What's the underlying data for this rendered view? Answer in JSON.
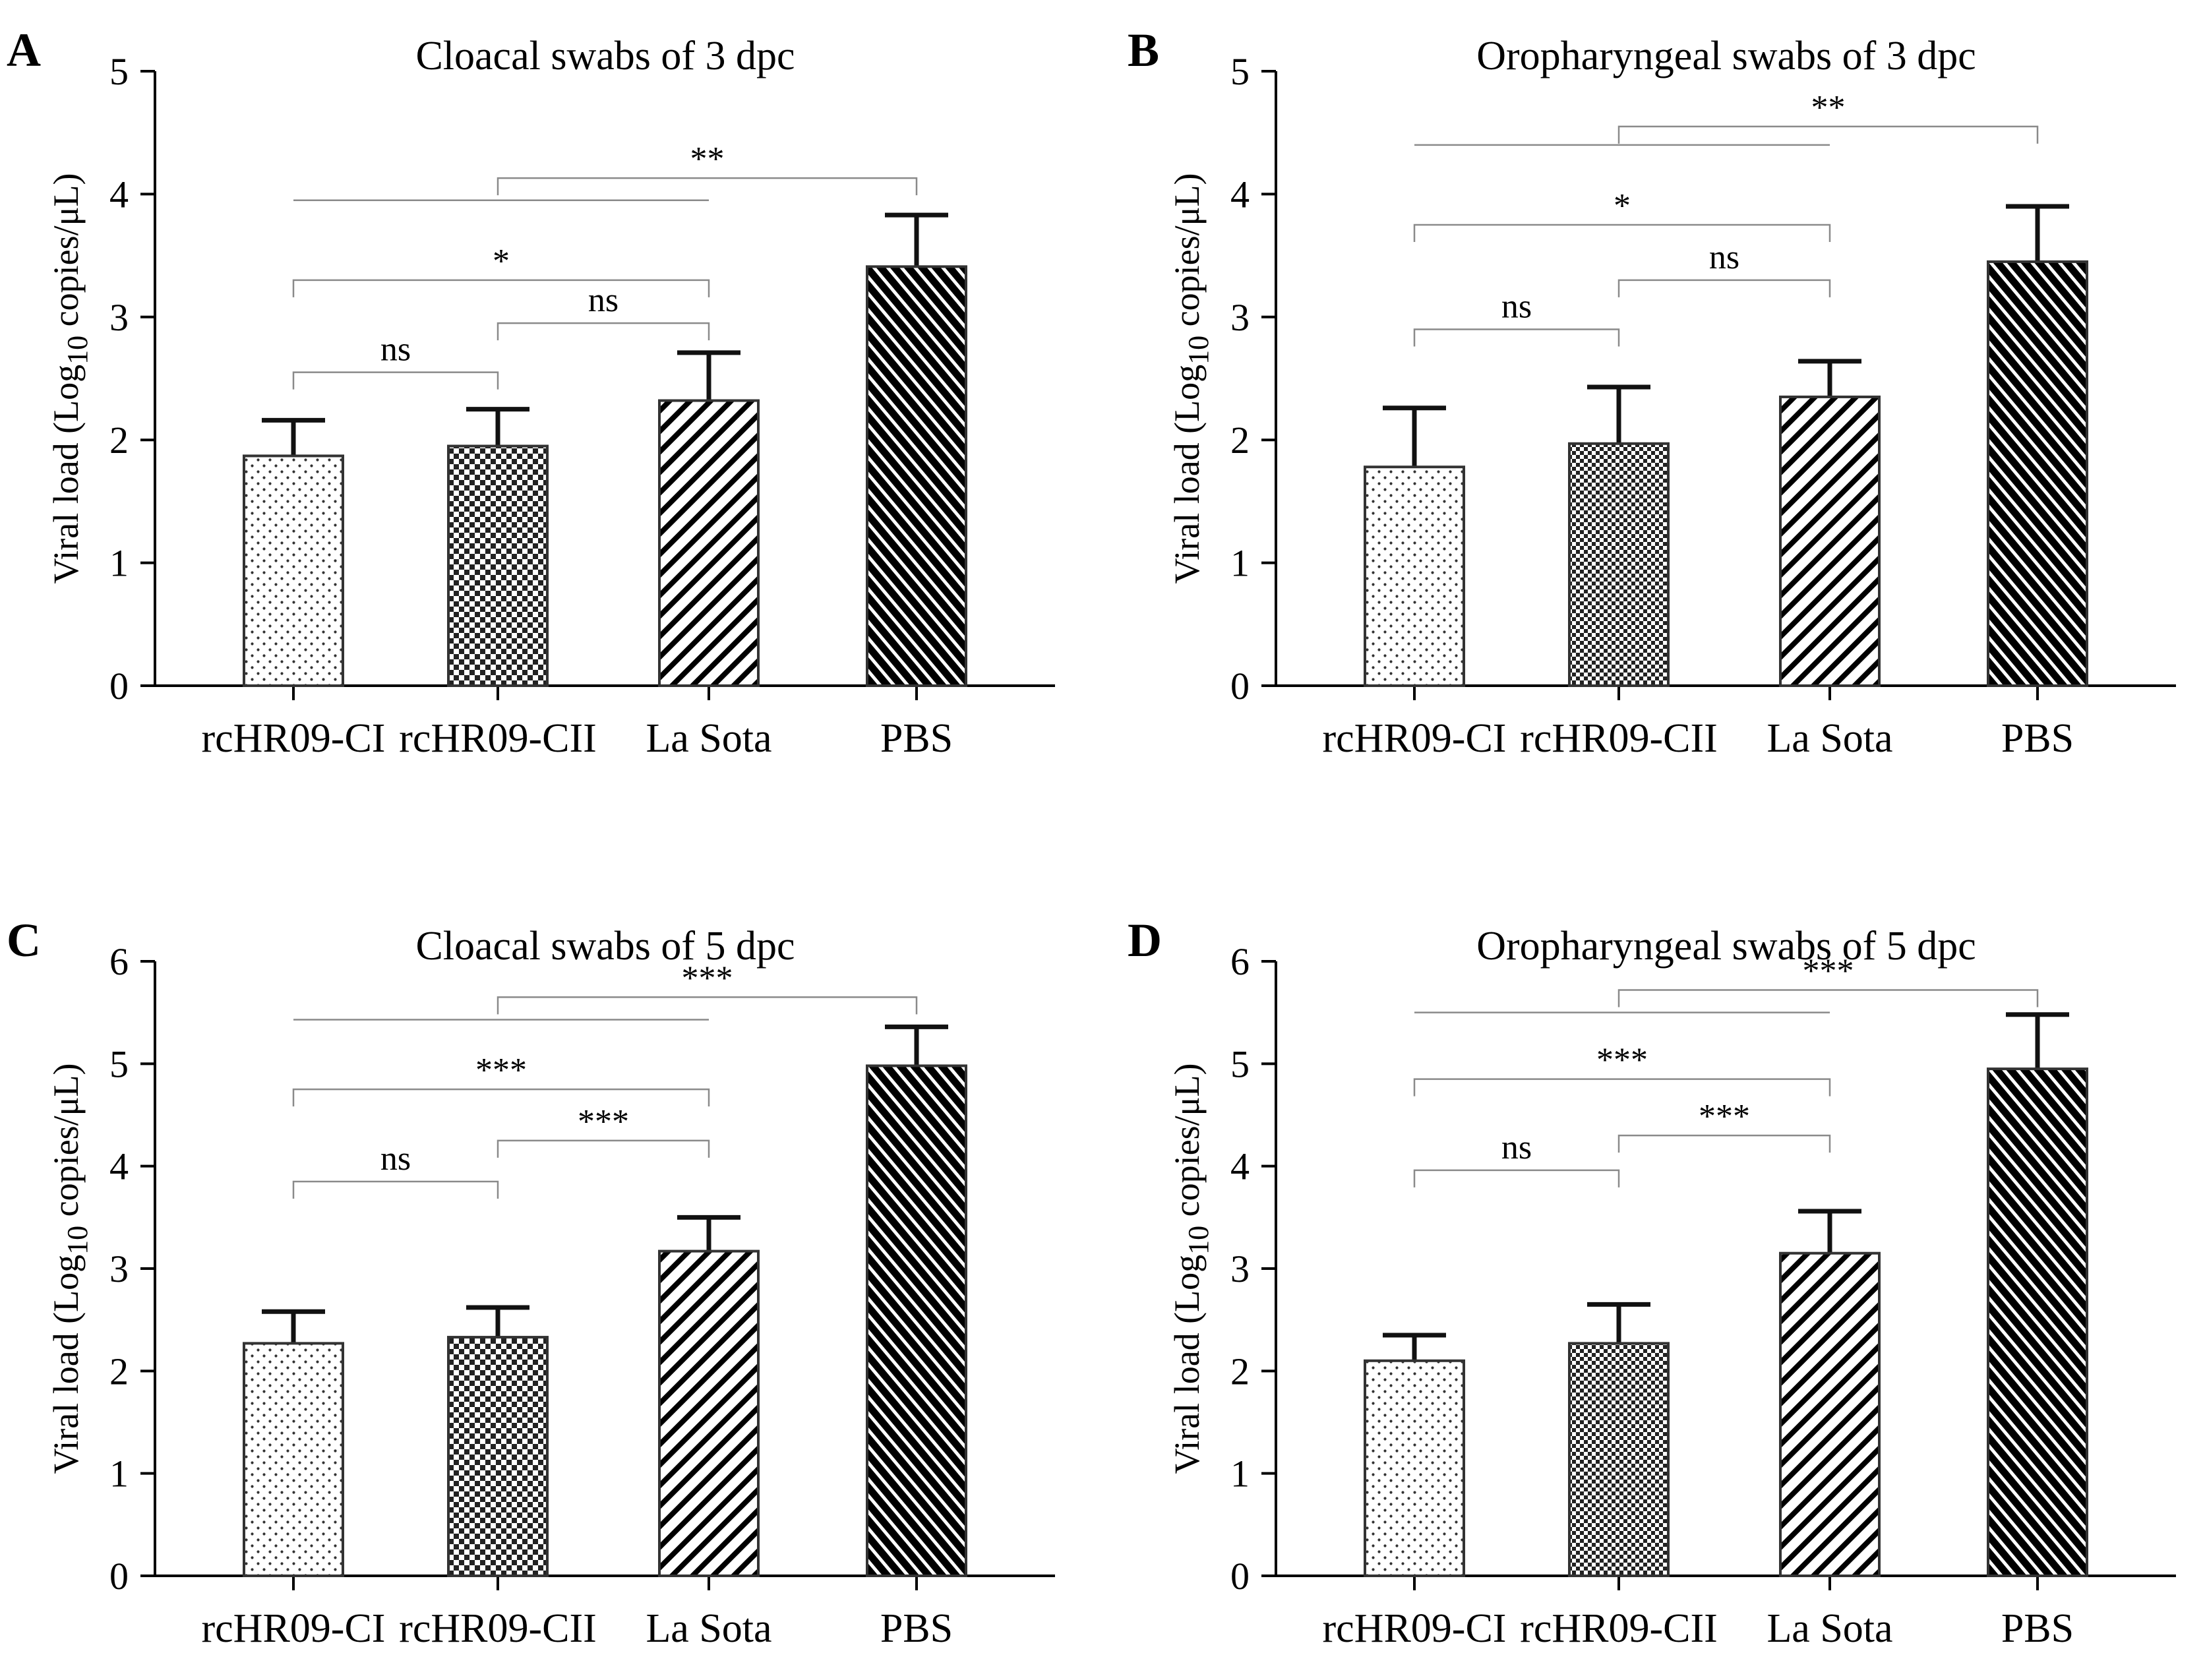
{
  "figure": {
    "name": "Viral load comparison figure"
  },
  "chart_data": [
    {
      "type": "bar",
      "panel": "A",
      "title": "Cloacal swabs of 3 dpc",
      "xlabel": "",
      "ylabel": {
        "prefix": "Viral load (Log",
        "sub": "10",
        "suffix": " copies/μL)"
      },
      "categories": [
        "rcHR09-CI",
        "rcHR09-CII",
        "La Sota",
        "PBS"
      ],
      "series": [
        {
          "name": "Viral load",
          "values": [
            1.87,
            1.95,
            2.32,
            3.41
          ],
          "errors": [
            0.29,
            0.3,
            0.39,
            0.42
          ]
        }
      ],
      "ylim": [
        0,
        5
      ],
      "yticks": [
        0,
        1,
        2,
        3,
        4,
        5
      ],
      "ytick_labels": [
        "0",
        "1",
        "2",
        "3",
        "4",
        "5"
      ],
      "patterns": [
        "dots",
        "checker",
        "diag-right",
        "diag-dense"
      ],
      "comparisons": [
        {
          "from": 0,
          "to": 1,
          "label": "ns",
          "level": 2.55
        },
        {
          "from": 1,
          "to": 2,
          "label": "ns",
          "level": 2.95
        },
        {
          "from": 0,
          "to": 2,
          "label": "*",
          "level": 3.3
        },
        {
          "from": 0,
          "to": 2,
          "label": "",
          "level": 3.95,
          "plain": true
        },
        {
          "from": 1,
          "to": 3,
          "label": "**",
          "level": 4.13
        }
      ]
    },
    {
      "type": "bar",
      "panel": "B",
      "title": "Oropharyngeal swabs of 3 dpc",
      "xlabel": "",
      "ylabel": {
        "prefix": "Viral load (Log",
        "sub": "10",
        "suffix": " copies/μL)"
      },
      "categories": [
        "rcHR09-CI",
        "rcHR09-CII",
        "La Sota",
        "PBS"
      ],
      "series": [
        {
          "name": "Viral load",
          "values": [
            1.78,
            1.97,
            2.35,
            3.45
          ],
          "errors": [
            0.48,
            0.46,
            0.29,
            0.45
          ]
        }
      ],
      "ylim": [
        0,
        5
      ],
      "yticks": [
        0,
        1,
        2,
        3,
        4,
        5
      ],
      "ytick_labels": [
        "0",
        "1",
        "2",
        "3",
        "4",
        "5"
      ],
      "patterns": [
        "dots",
        "checker-fine",
        "diag-right",
        "diag-dense"
      ],
      "comparisons": [
        {
          "from": 0,
          "to": 1,
          "label": "ns",
          "level": 2.9
        },
        {
          "from": 1,
          "to": 2,
          "label": "ns",
          "level": 3.3
        },
        {
          "from": 0,
          "to": 2,
          "label": "*",
          "level": 3.75
        },
        {
          "from": 0,
          "to": 2,
          "label": "",
          "level": 4.4,
          "plain": true
        },
        {
          "from": 1,
          "to": 3,
          "label": "**",
          "level": 4.55
        }
      ]
    },
    {
      "type": "bar",
      "panel": "C",
      "title": "Cloacal swabs of 5 dpc",
      "xlabel": "",
      "ylabel": {
        "prefix": "Viral load (Log",
        "sub": "10",
        "suffix": " copies/μL)"
      },
      "categories": [
        "rcHR09-CI",
        "rcHR09-CII",
        "La Sota",
        "PBS"
      ],
      "series": [
        {
          "name": "Viral load",
          "values": [
            2.27,
            2.33,
            3.17,
            4.98
          ],
          "errors": [
            0.31,
            0.29,
            0.33,
            0.38
          ]
        }
      ],
      "ylim": [
        0,
        6
      ],
      "yticks": [
        0,
        1,
        2,
        3,
        4,
        5,
        6
      ],
      "ytick_labels": [
        "0",
        "1",
        "2",
        "3",
        "4",
        "5",
        "6"
      ],
      "patterns": [
        "dots",
        "checker",
        "diag-right",
        "diag-dense"
      ],
      "comparisons": [
        {
          "from": 0,
          "to": 1,
          "label": "ns",
          "level": 3.85
        },
        {
          "from": 1,
          "to": 2,
          "label": "***",
          "level": 4.25
        },
        {
          "from": 0,
          "to": 2,
          "label": "***",
          "level": 4.75
        },
        {
          "from": 0,
          "to": 2,
          "label": "",
          "level": 5.43,
          "plain": true
        },
        {
          "from": 1,
          "to": 3,
          "label": "***",
          "level": 5.65
        }
      ]
    },
    {
      "type": "bar",
      "panel": "D",
      "title": "Oropharyngeal swabs of 5 dpc",
      "xlabel": "",
      "ylabel": {
        "prefix": "Viral load (Log",
        "sub": "10",
        "suffix": " copies/μL)"
      },
      "categories": [
        "rcHR09-CI",
        "rcHR09-CII",
        "La Sota",
        "PBS"
      ],
      "series": [
        {
          "name": "Viral load",
          "values": [
            2.1,
            2.27,
            3.15,
            4.95
          ],
          "errors": [
            0.25,
            0.38,
            0.41,
            0.53
          ]
        }
      ],
      "ylim": [
        0,
        6
      ],
      "yticks": [
        0,
        1,
        2,
        3,
        4,
        5,
        6
      ],
      "ytick_labels": [
        "0",
        "1",
        "2",
        "3",
        "4",
        "5",
        "6"
      ],
      "patterns": [
        "dots",
        "checker-fine",
        "diag-right",
        "diag-dense"
      ],
      "comparisons": [
        {
          "from": 0,
          "to": 1,
          "label": "ns",
          "level": 3.96
        },
        {
          "from": 1,
          "to": 2,
          "label": "***",
          "level": 4.3
        },
        {
          "from": 0,
          "to": 2,
          "label": "***",
          "level": 4.85
        },
        {
          "from": 0,
          "to": 2,
          "label": "",
          "level": 5.5,
          "plain": true
        },
        {
          "from": 1,
          "to": 3,
          "label": "***",
          "level": 5.72
        }
      ]
    }
  ]
}
